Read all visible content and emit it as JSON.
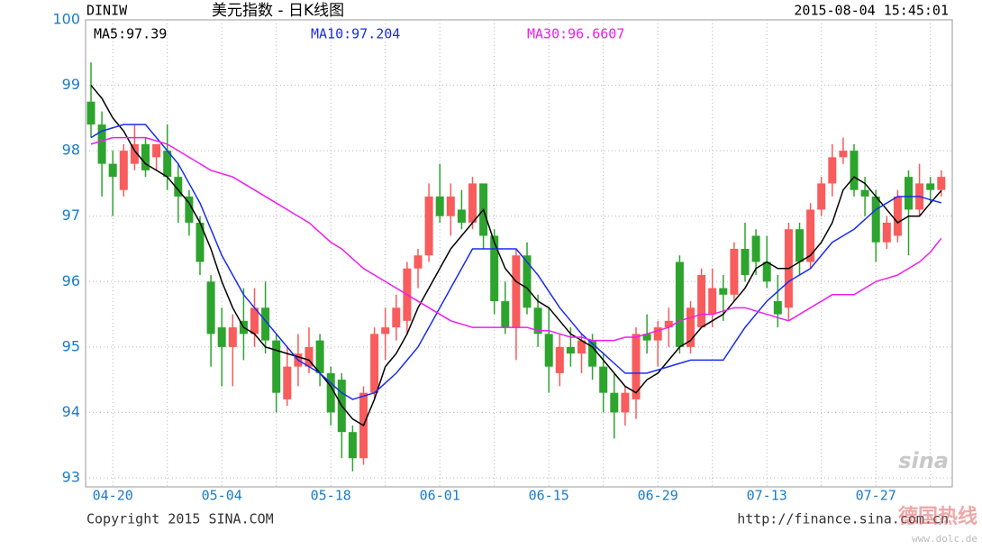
{
  "chart_data": {
    "type": "candlestick",
    "symbol": "DINIW",
    "title": "美元指数 - 日K线图",
    "timestamp": "2015-08-04 15:45:01",
    "copyright": "Copyright 2015 SINA.COM",
    "source": "http://finance.sina.com.cn",
    "logo": "sina",
    "watermark": "德国热线",
    "watermark_url": "www.dolc.de",
    "categories": [
      null,
      null,
      "04-20",
      null,
      null,
      null,
      null,
      null,
      null,
      null,
      null,
      null,
      "05-04",
      null,
      null,
      null,
      null,
      null,
      null,
      null,
      null,
      null,
      "05-18",
      null,
      null,
      null,
      null,
      null,
      null,
      null,
      null,
      null,
      "06-01",
      null,
      null,
      null,
      null,
      null,
      null,
      null,
      null,
      null,
      "06-15",
      null,
      null,
      null,
      null,
      null,
      null,
      null,
      null,
      null,
      "06-29",
      null,
      null,
      null,
      null,
      null,
      null,
      null,
      null,
      null,
      "07-13",
      null,
      null,
      null,
      null,
      null,
      null,
      null,
      null,
      null,
      "07-27",
      null,
      null,
      null,
      null,
      null,
      null
    ],
    "open": [
      98.75,
      98.4,
      97.8,
      97.4,
      97.8,
      98.1,
      97.9,
      98.0,
      97.6,
      97.3,
      96.9,
      96.0,
      95.3,
      95.0,
      95.4,
      95.2,
      95.6,
      95.1,
      94.2,
      94.7,
      94.7,
      95.1,
      94.6,
      94.5,
      93.7,
      93.3,
      94.3,
      95.2,
      95.3,
      95.4,
      96.2,
      96.4,
      97.3,
      97.0,
      97.1,
      96.9,
      97.5,
      96.7,
      95.7,
      95.3,
      96.4,
      95.6,
      95.2,
      94.6,
      95.0,
      94.9,
      95.1,
      94.7,
      94.3,
      94.0,
      94.2,
      95.2,
      95.1,
      95.3,
      96.3,
      95.0,
      95.3,
      95.5,
      95.9,
      95.8,
      96.5,
      96.7,
      96.3,
      95.7,
      95.6,
      96.8,
      96.3,
      97.1,
      97.5,
      97.9,
      98.0,
      97.4,
      97.3,
      96.6,
      96.7,
      97.6,
      97.1,
      97.5,
      97.4
    ],
    "high": [
      99.35,
      98.6,
      98.0,
      98.1,
      98.4,
      98.2,
      98.1,
      98.4,
      97.8,
      97.4,
      97.0,
      96.1,
      95.6,
      95.5,
      95.9,
      95.9,
      96.0,
      95.2,
      95.0,
      95.2,
      95.3,
      95.2,
      94.7,
      94.6,
      93.8,
      94.4,
      95.3,
      95.6,
      95.8,
      96.3,
      96.5,
      97.5,
      97.8,
      97.5,
      97.4,
      97.6,
      97.5,
      96.8,
      96.0,
      96.5,
      96.6,
      95.8,
      95.6,
      95.2,
      95.3,
      95.2,
      95.2,
      94.9,
      94.6,
      94.4,
      95.3,
      95.5,
      95.4,
      95.6,
      96.4,
      95.7,
      96.2,
      96.2,
      96.1,
      96.6,
      96.9,
      96.8,
      96.7,
      96.1,
      96.9,
      96.9,
      97.2,
      97.6,
      98.1,
      98.2,
      98.1,
      97.6,
      97.4,
      97.0,
      97.4,
      97.7,
      97.8,
      97.6,
      97.7
    ],
    "low": [
      98.2,
      97.3,
      97.0,
      97.3,
      97.7,
      97.6,
      97.7,
      97.4,
      96.9,
      96.7,
      96.1,
      94.7,
      94.4,
      94.4,
      94.8,
      95.0,
      94.9,
      94.0,
      94.1,
      94.4,
      94.6,
      94.4,
      93.8,
      93.3,
      93.1,
      93.2,
      94.2,
      94.8,
      95.1,
      95.2,
      95.9,
      96.3,
      96.9,
      96.7,
      96.8,
      96.8,
      96.5,
      95.5,
      95.2,
      94.8,
      95.5,
      95.0,
      94.3,
      94.4,
      94.7,
      94.6,
      94.5,
      94.0,
      93.6,
      93.8,
      93.9,
      94.9,
      94.7,
      95.0,
      94.9,
      94.9,
      95.3,
      95.3,
      95.4,
      95.7,
      96.0,
      96.1,
      95.9,
      95.3,
      95.4,
      96.1,
      96.2,
      97.0,
      97.3,
      97.8,
      97.3,
      97.0,
      96.3,
      96.5,
      96.6,
      96.4,
      97.0,
      97.2,
      97.3
    ],
    "close": [
      98.4,
      97.8,
      97.6,
      98.0,
      98.1,
      97.7,
      98.1,
      97.6,
      97.3,
      96.9,
      96.3,
      95.2,
      95.0,
      95.3,
      95.2,
      95.6,
      95.1,
      94.3,
      94.7,
      94.9,
      95.0,
      94.6,
      94.0,
      93.7,
      93.3,
      94.3,
      95.2,
      95.3,
      95.6,
      96.2,
      96.4,
      97.3,
      97.0,
      97.3,
      96.9,
      97.5,
      96.7,
      95.7,
      95.3,
      96.4,
      95.6,
      95.2,
      94.7,
      95.0,
      94.9,
      95.1,
      94.7,
      94.3,
      94.0,
      94.3,
      95.2,
      95.1,
      95.3,
      95.4,
      95.0,
      95.6,
      96.1,
      95.9,
      95.8,
      96.5,
      96.1,
      96.3,
      96.0,
      95.5,
      96.8,
      96.3,
      97.1,
      97.5,
      97.9,
      98.0,
      97.4,
      97.3,
      96.6,
      96.9,
      97.3,
      97.1,
      97.5,
      97.4,
      97.6
    ],
    "up_color": "#f85c5c",
    "down_color": "#2da42d",
    "series": [
      {
        "name": "MA5:97.39",
        "color": "#000000",
        "values": [
          99.0,
          98.8,
          98.5,
          98.3,
          98.0,
          97.8,
          97.7,
          97.6,
          97.4,
          97.2,
          96.9,
          96.5,
          96.0,
          95.6,
          95.3,
          95.2,
          95.0,
          94.95,
          94.9,
          94.85,
          94.8,
          94.6,
          94.4,
          94.1,
          93.9,
          93.8,
          94.2,
          94.7,
          94.9,
          95.2,
          95.6,
          95.9,
          96.2,
          96.5,
          96.7,
          96.9,
          97.1,
          96.6,
          96.2,
          96.0,
          95.9,
          95.7,
          95.6,
          95.4,
          95.2,
          95.1,
          95.0,
          94.8,
          94.6,
          94.4,
          94.3,
          94.5,
          94.6,
          94.8,
          95.0,
          95.1,
          95.3,
          95.4,
          95.5,
          95.7,
          95.9,
          96.2,
          96.3,
          96.2,
          96.2,
          96.3,
          96.4,
          96.6,
          96.9,
          97.4,
          97.6,
          97.5,
          97.3,
          97.1,
          96.9,
          97.0,
          97.0,
          97.2,
          97.39
        ]
      },
      {
        "name": "MA10:97.204",
        "color": "#1a2cf0",
        "values": [
          98.2,
          98.3,
          98.35,
          98.4,
          98.4,
          98.4,
          98.2,
          98.0,
          97.8,
          97.5,
          97.2,
          96.8,
          96.4,
          96.1,
          95.8,
          95.6,
          95.4,
          95.2,
          95.0,
          94.8,
          94.7,
          94.6,
          94.45,
          94.3,
          94.2,
          94.25,
          94.3,
          94.45,
          94.6,
          94.8,
          95.0,
          95.3,
          95.6,
          95.9,
          96.2,
          96.5,
          96.5,
          96.5,
          96.5,
          96.5,
          96.3,
          96.1,
          95.85,
          95.6,
          95.4,
          95.2,
          95.05,
          94.9,
          94.75,
          94.6,
          94.6,
          94.6,
          94.65,
          94.7,
          94.75,
          94.8,
          94.8,
          94.8,
          94.8,
          95.05,
          95.3,
          95.5,
          95.7,
          95.85,
          96.0,
          96.1,
          96.2,
          96.4,
          96.6,
          96.7,
          96.8,
          96.95,
          97.1,
          97.2,
          97.3,
          97.3,
          97.3,
          97.25,
          97.204
        ]
      },
      {
        "name": "MA30:96.6607",
        "color": "#f01cf0",
        "values": [
          98.1,
          98.15,
          98.2,
          98.2,
          98.2,
          98.2,
          98.15,
          98.1,
          98.0,
          97.9,
          97.8,
          97.7,
          97.65,
          97.6,
          97.5,
          97.4,
          97.3,
          97.2,
          97.1,
          97.0,
          96.9,
          96.75,
          96.6,
          96.5,
          96.35,
          96.2,
          96.1,
          96.0,
          95.9,
          95.8,
          95.7,
          95.6,
          95.5,
          95.4,
          95.35,
          95.3,
          95.3,
          95.3,
          95.3,
          95.3,
          95.3,
          95.25,
          95.25,
          95.2,
          95.15,
          95.15,
          95.1,
          95.1,
          95.1,
          95.15,
          95.15,
          95.2,
          95.25,
          95.3,
          95.4,
          95.45,
          95.5,
          95.5,
          95.55,
          95.6,
          95.6,
          95.55,
          95.5,
          95.45,
          95.4,
          95.5,
          95.6,
          95.7,
          95.8,
          95.8,
          95.8,
          95.9,
          96.0,
          96.05,
          96.1,
          96.2,
          96.3,
          96.45,
          96.6607
        ]
      }
    ],
    "ylim": [
      93,
      100
    ],
    "yticks": [
      93,
      94,
      95,
      96,
      97,
      98,
      99,
      100
    ],
    "grid": true
  }
}
